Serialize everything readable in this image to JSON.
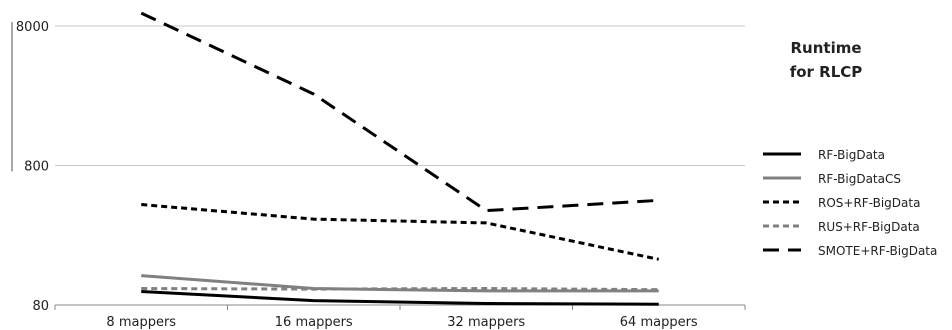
{
  "chart_data": {
    "type": "line",
    "title_lines": [
      "Runtime",
      "for RLCP"
    ],
    "xlabel": "",
    "ylabel": "",
    "y_scale": "log",
    "ylim": [
      80,
      8000
    ],
    "y_ticks": [
      80,
      800,
      8000
    ],
    "grid": true,
    "legend_position": "right",
    "categories": [
      "8 mappers",
      "16 mappers",
      "32 mappers",
      "64 mappers"
    ],
    "series": [
      {
        "name": "RF-BigData",
        "values": [
          100,
          86,
          82,
          81
        ],
        "color": "#000000",
        "style": "solid"
      },
      {
        "name": "RF-BigDataCS",
        "values": [
          130,
          105,
          101,
          101
        ],
        "color": "#808080",
        "style": "solid"
      },
      {
        "name": "ROS+RF-BigData",
        "values": [
          420,
          330,
          310,
          170
        ],
        "color": "#000000",
        "style": "dashed"
      },
      {
        "name": "RUS+RF-BigData",
        "values": [
          105,
          104,
          105,
          103
        ],
        "color": "#808080",
        "style": "dashed"
      },
      {
        "name": "SMOTE+RF-BigData",
        "values": [
          9900,
          2600,
          380,
          450
        ],
        "color": "#000000",
        "style": "long-dashed"
      }
    ]
  }
}
